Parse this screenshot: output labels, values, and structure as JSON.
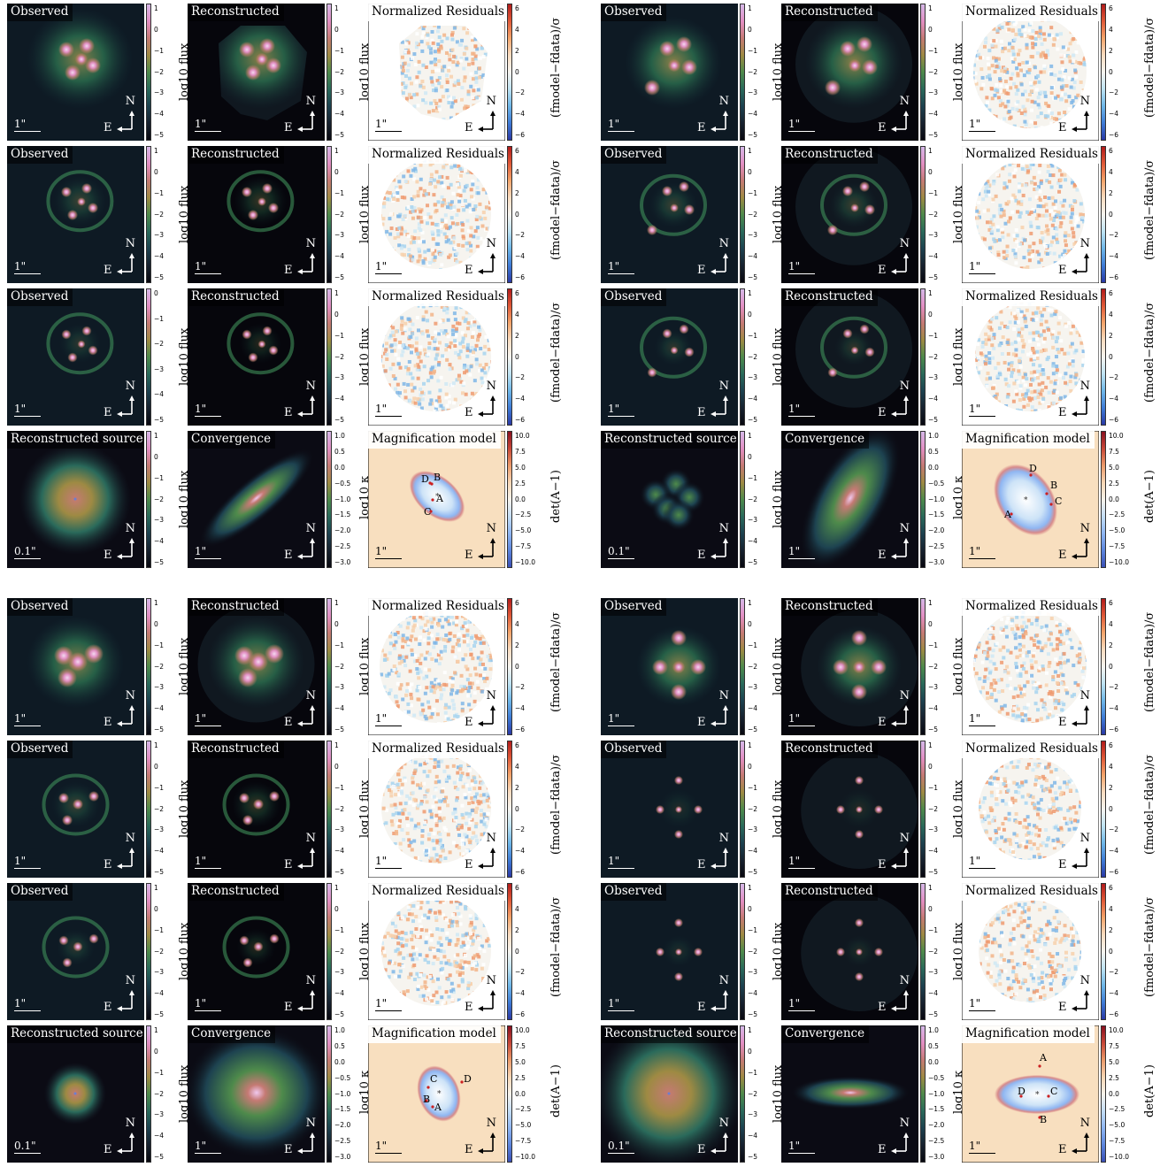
{
  "labels": {
    "observed": "Observed",
    "reconstructed": "Reconstructed",
    "residuals": "Normalized Residuals",
    "source": "Reconstructed source",
    "convergence": "Convergence",
    "magnification": "Magnification model",
    "north": "N",
    "east": "E",
    "scale_1": "1\"",
    "scale_01": "0.1\""
  },
  "colorbars": {
    "flux": {
      "label": "log10 flux",
      "ticks": [
        "1",
        "0",
        "−1",
        "−2",
        "−3",
        "−4",
        "−5"
      ]
    },
    "flux_short": {
      "label": "log10 flux",
      "ticks": [
        "0",
        "−1",
        "−2",
        "−3",
        "−4",
        "−5"
      ]
    },
    "residual": {
      "label": "(fmodel−fdata)/σ",
      "ticks": [
        "6",
        "4",
        "2",
        "0",
        "−2",
        "−4",
        "−6"
      ]
    },
    "kappa": {
      "label": "log10 κ",
      "ticks": [
        "1.0",
        "0.5",
        "0.0",
        "−0.5",
        "−1.0",
        "−1.5",
        "−2.0",
        "−2.5",
        "−3.0"
      ]
    },
    "det": {
      "label": "det(A−1)",
      "ticks": [
        "10.0",
        "7.5",
        "5.0",
        "2.5",
        "0.0",
        "−2.5",
        "−5.0",
        "−7.5",
        "−10.0"
      ]
    }
  },
  "colors": {
    "residual_pos": "#c8302a",
    "residual_neg": "#3a63c8",
    "residual_zero": "#f6f4ef",
    "mag_background": "#f8dfbf",
    "mag_caustic": "#8fb6f2",
    "image_marker": "#cc2020"
  },
  "systems": [
    {
      "id": "sys1",
      "image_labels": [
        "A",
        "B",
        "C",
        "D"
      ]
    },
    {
      "id": "sys2",
      "image_labels": [
        "A",
        "B",
        "C",
        "D"
      ]
    },
    {
      "id": "sys3",
      "image_labels": [
        "A",
        "B",
        "C",
        "D"
      ]
    },
    {
      "id": "sys4",
      "image_labels": [
        "A",
        "B",
        "C",
        "D"
      ]
    }
  ]
}
